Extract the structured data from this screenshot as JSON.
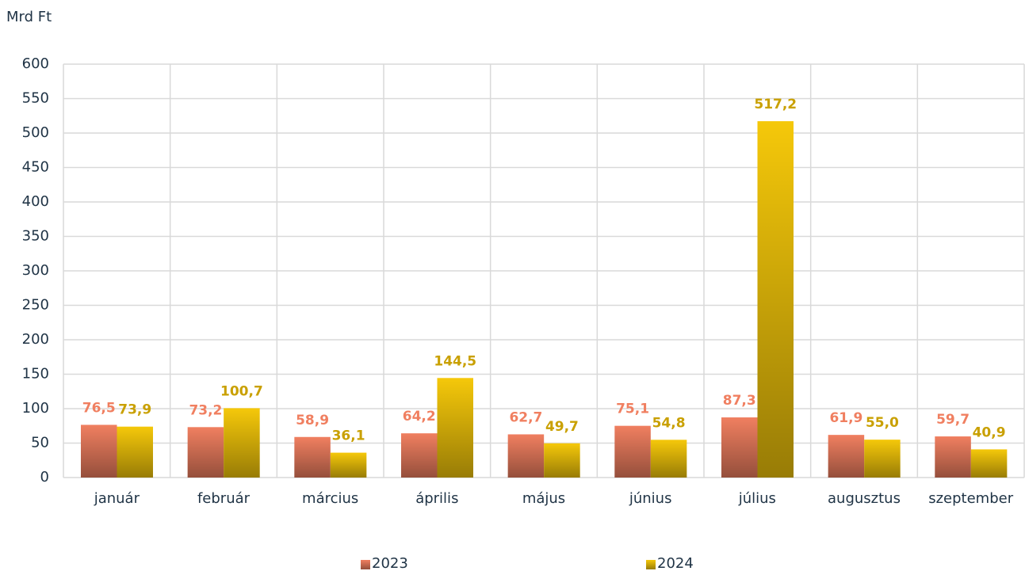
{
  "chart_data": {
    "type": "bar",
    "y_axis_label": "Mrd Ft",
    "categories": [
      "január",
      "február",
      "március",
      "április",
      "május",
      "június",
      "július",
      "augusztus",
      "szeptember"
    ],
    "series": [
      {
        "name": "2023",
        "color": "#f07f60",
        "values": [
          76.5,
          73.2,
          58.9,
          64.2,
          62.7,
          75.1,
          87.3,
          61.9,
          59.7
        ],
        "value_labels": [
          "76,5",
          "73,2",
          "58,9",
          "64,2",
          "62,7",
          "75,1",
          "87,3",
          "61,9",
          "59,7"
        ]
      },
      {
        "name": "2024",
        "color": "#f5c80a",
        "values": [
          73.9,
          100.7,
          36.1,
          144.5,
          49.7,
          54.8,
          517.2,
          55.0,
          40.9
        ],
        "value_labels": [
          "73,9",
          "100,7",
          "36,1",
          "144,5",
          "49,7",
          "54,8",
          "517,2",
          "55,0",
          "40,9"
        ]
      }
    ],
    "ylim": [
      0,
      600
    ],
    "yticks": [
      0,
      50,
      100,
      150,
      200,
      250,
      300,
      350,
      400,
      450,
      500,
      550,
      600
    ],
    "grid": true,
    "legend": "bottom"
  }
}
